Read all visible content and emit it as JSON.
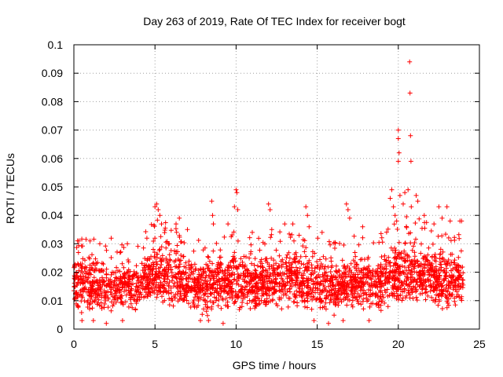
{
  "chart_data": {
    "type": "scatter",
    "title": "Day 263 of 2019, Rate Of TEC Index for receiver bogt",
    "xlabel": "GPS time / hours",
    "ylabel": "ROTI / TECUs",
    "xlim": [
      0,
      25
    ],
    "ylim": [
      0,
      0.1
    ],
    "xticks": [
      0,
      5,
      10,
      15,
      20,
      25
    ],
    "xtick_labels": [
      "0",
      "5",
      "10",
      "15",
      "20",
      "25"
    ],
    "yticks": [
      0,
      0.01,
      0.02,
      0.03,
      0.04,
      0.05,
      0.06,
      0.07,
      0.08,
      0.09,
      0.1
    ],
    "ytick_labels": [
      "0",
      "0.01",
      "0.02",
      "0.03",
      "0.04",
      "0.05",
      "0.06",
      "0.07",
      "0.08",
      "0.09",
      "0.1"
    ],
    "grid": true,
    "marker": "+",
    "color": "#ff0000",
    "envelope": [
      {
        "x": 0,
        "lo": 0.006,
        "hi": 0.027
      },
      {
        "x": 1,
        "lo": 0.004,
        "hi": 0.029
      },
      {
        "x": 2,
        "lo": 0.004,
        "hi": 0.026
      },
      {
        "x": 3,
        "lo": 0.004,
        "hi": 0.027
      },
      {
        "x": 4,
        "lo": 0.005,
        "hi": 0.028
      },
      {
        "x": 5,
        "lo": 0.006,
        "hi": 0.035
      },
      {
        "x": 6,
        "lo": 0.006,
        "hi": 0.033
      },
      {
        "x": 7,
        "lo": 0.005,
        "hi": 0.028
      },
      {
        "x": 8,
        "lo": 0.004,
        "hi": 0.027
      },
      {
        "x": 9,
        "lo": 0.005,
        "hi": 0.03
      },
      {
        "x": 10,
        "lo": 0.005,
        "hi": 0.031
      },
      {
        "x": 11,
        "lo": 0.005,
        "hi": 0.029
      },
      {
        "x": 12,
        "lo": 0.005,
        "hi": 0.03
      },
      {
        "x": 13,
        "lo": 0.005,
        "hi": 0.031
      },
      {
        "x": 14,
        "lo": 0.005,
        "hi": 0.031
      },
      {
        "x": 15,
        "lo": 0.004,
        "hi": 0.028
      },
      {
        "x": 16,
        "lo": 0.004,
        "hi": 0.027
      },
      {
        "x": 17,
        "lo": 0.005,
        "hi": 0.029
      },
      {
        "x": 18,
        "lo": 0.004,
        "hi": 0.028
      },
      {
        "x": 19,
        "lo": 0.005,
        "hi": 0.03
      },
      {
        "x": 20,
        "lo": 0.006,
        "hi": 0.035
      },
      {
        "x": 21,
        "lo": 0.007,
        "hi": 0.036
      },
      {
        "x": 22,
        "lo": 0.006,
        "hi": 0.033
      },
      {
        "x": 23,
        "lo": 0.005,
        "hi": 0.031
      },
      {
        "x": 24,
        "lo": 0.006,
        "hi": 0.03
      }
    ],
    "outliers": [
      {
        "x": 0.3,
        "y": 0.031
      },
      {
        "x": 1.0,
        "y": 0.031
      },
      {
        "x": 1.6,
        "y": 0.03
      },
      {
        "x": 2.3,
        "y": 0.032
      },
      {
        "x": 3.3,
        "y": 0.03
      },
      {
        "x": 4.5,
        "y": 0.032
      },
      {
        "x": 5.0,
        "y": 0.043
      },
      {
        "x": 5.1,
        "y": 0.044
      },
      {
        "x": 5.2,
        "y": 0.042
      },
      {
        "x": 5.3,
        "y": 0.04
      },
      {
        "x": 5.4,
        "y": 0.037
      },
      {
        "x": 6.5,
        "y": 0.039
      },
      {
        "x": 6.3,
        "y": 0.037
      },
      {
        "x": 7.0,
        "y": 0.035
      },
      {
        "x": 8.5,
        "y": 0.045
      },
      {
        "x": 8.55,
        "y": 0.04
      },
      {
        "x": 8.6,
        "y": 0.037
      },
      {
        "x": 9.5,
        "y": 0.037
      },
      {
        "x": 9.9,
        "y": 0.043
      },
      {
        "x": 10.0,
        "y": 0.049
      },
      {
        "x": 10.05,
        "y": 0.048
      },
      {
        "x": 10.1,
        "y": 0.042
      },
      {
        "x": 11.0,
        "y": 0.034
      },
      {
        "x": 12.0,
        "y": 0.044
      },
      {
        "x": 12.1,
        "y": 0.042
      },
      {
        "x": 12.2,
        "y": 0.035
      },
      {
        "x": 13.0,
        "y": 0.037
      },
      {
        "x": 13.5,
        "y": 0.037
      },
      {
        "x": 14.3,
        "y": 0.043
      },
      {
        "x": 14.4,
        "y": 0.04
      },
      {
        "x": 14.5,
        "y": 0.036
      },
      {
        "x": 15.3,
        "y": 0.034
      },
      {
        "x": 16.8,
        "y": 0.044
      },
      {
        "x": 16.9,
        "y": 0.042
      },
      {
        "x": 17.0,
        "y": 0.039
      },
      {
        "x": 17.8,
        "y": 0.036
      },
      {
        "x": 19.5,
        "y": 0.046
      },
      {
        "x": 19.6,
        "y": 0.049
      },
      {
        "x": 19.7,
        "y": 0.043
      },
      {
        "x": 19.8,
        "y": 0.04
      },
      {
        "x": 19.9,
        "y": 0.038
      },
      {
        "x": 20.0,
        "y": 0.07
      },
      {
        "x": 20.0,
        "y": 0.067
      },
      {
        "x": 20.05,
        "y": 0.062
      },
      {
        "x": 20.0,
        "y": 0.059
      },
      {
        "x": 20.1,
        "y": 0.047
      },
      {
        "x": 20.3,
        "y": 0.044
      },
      {
        "x": 20.4,
        "y": 0.048
      },
      {
        "x": 20.6,
        "y": 0.049
      },
      {
        "x": 20.7,
        "y": 0.094
      },
      {
        "x": 20.72,
        "y": 0.083
      },
      {
        "x": 20.75,
        "y": 0.068
      },
      {
        "x": 20.78,
        "y": 0.059
      },
      {
        "x": 20.8,
        "y": 0.043
      },
      {
        "x": 21.1,
        "y": 0.047
      },
      {
        "x": 21.2,
        "y": 0.045
      },
      {
        "x": 21.6,
        "y": 0.04
      },
      {
        "x": 22.2,
        "y": 0.037
      },
      {
        "x": 22.5,
        "y": 0.043
      },
      {
        "x": 22.7,
        "y": 0.039
      },
      {
        "x": 23.0,
        "y": 0.043
      },
      {
        "x": 23.2,
        "y": 0.038
      },
      {
        "x": 23.8,
        "y": 0.038
      },
      {
        "x": 23.9,
        "y": 0.038
      },
      {
        "x": 0.5,
        "y": 0.003
      },
      {
        "x": 1.2,
        "y": 0.003
      },
      {
        "x": 2.0,
        "y": 0.002
      },
      {
        "x": 3.0,
        "y": 0.003
      },
      {
        "x": 7.8,
        "y": 0.003
      },
      {
        "x": 8.3,
        "y": 0.003
      },
      {
        "x": 9.2,
        "y": 0.002
      },
      {
        "x": 14.8,
        "y": 0.003
      },
      {
        "x": 15.7,
        "y": 0.002
      },
      {
        "x": 16.6,
        "y": 0.003
      },
      {
        "x": 18.2,
        "y": 0.003
      }
    ]
  }
}
